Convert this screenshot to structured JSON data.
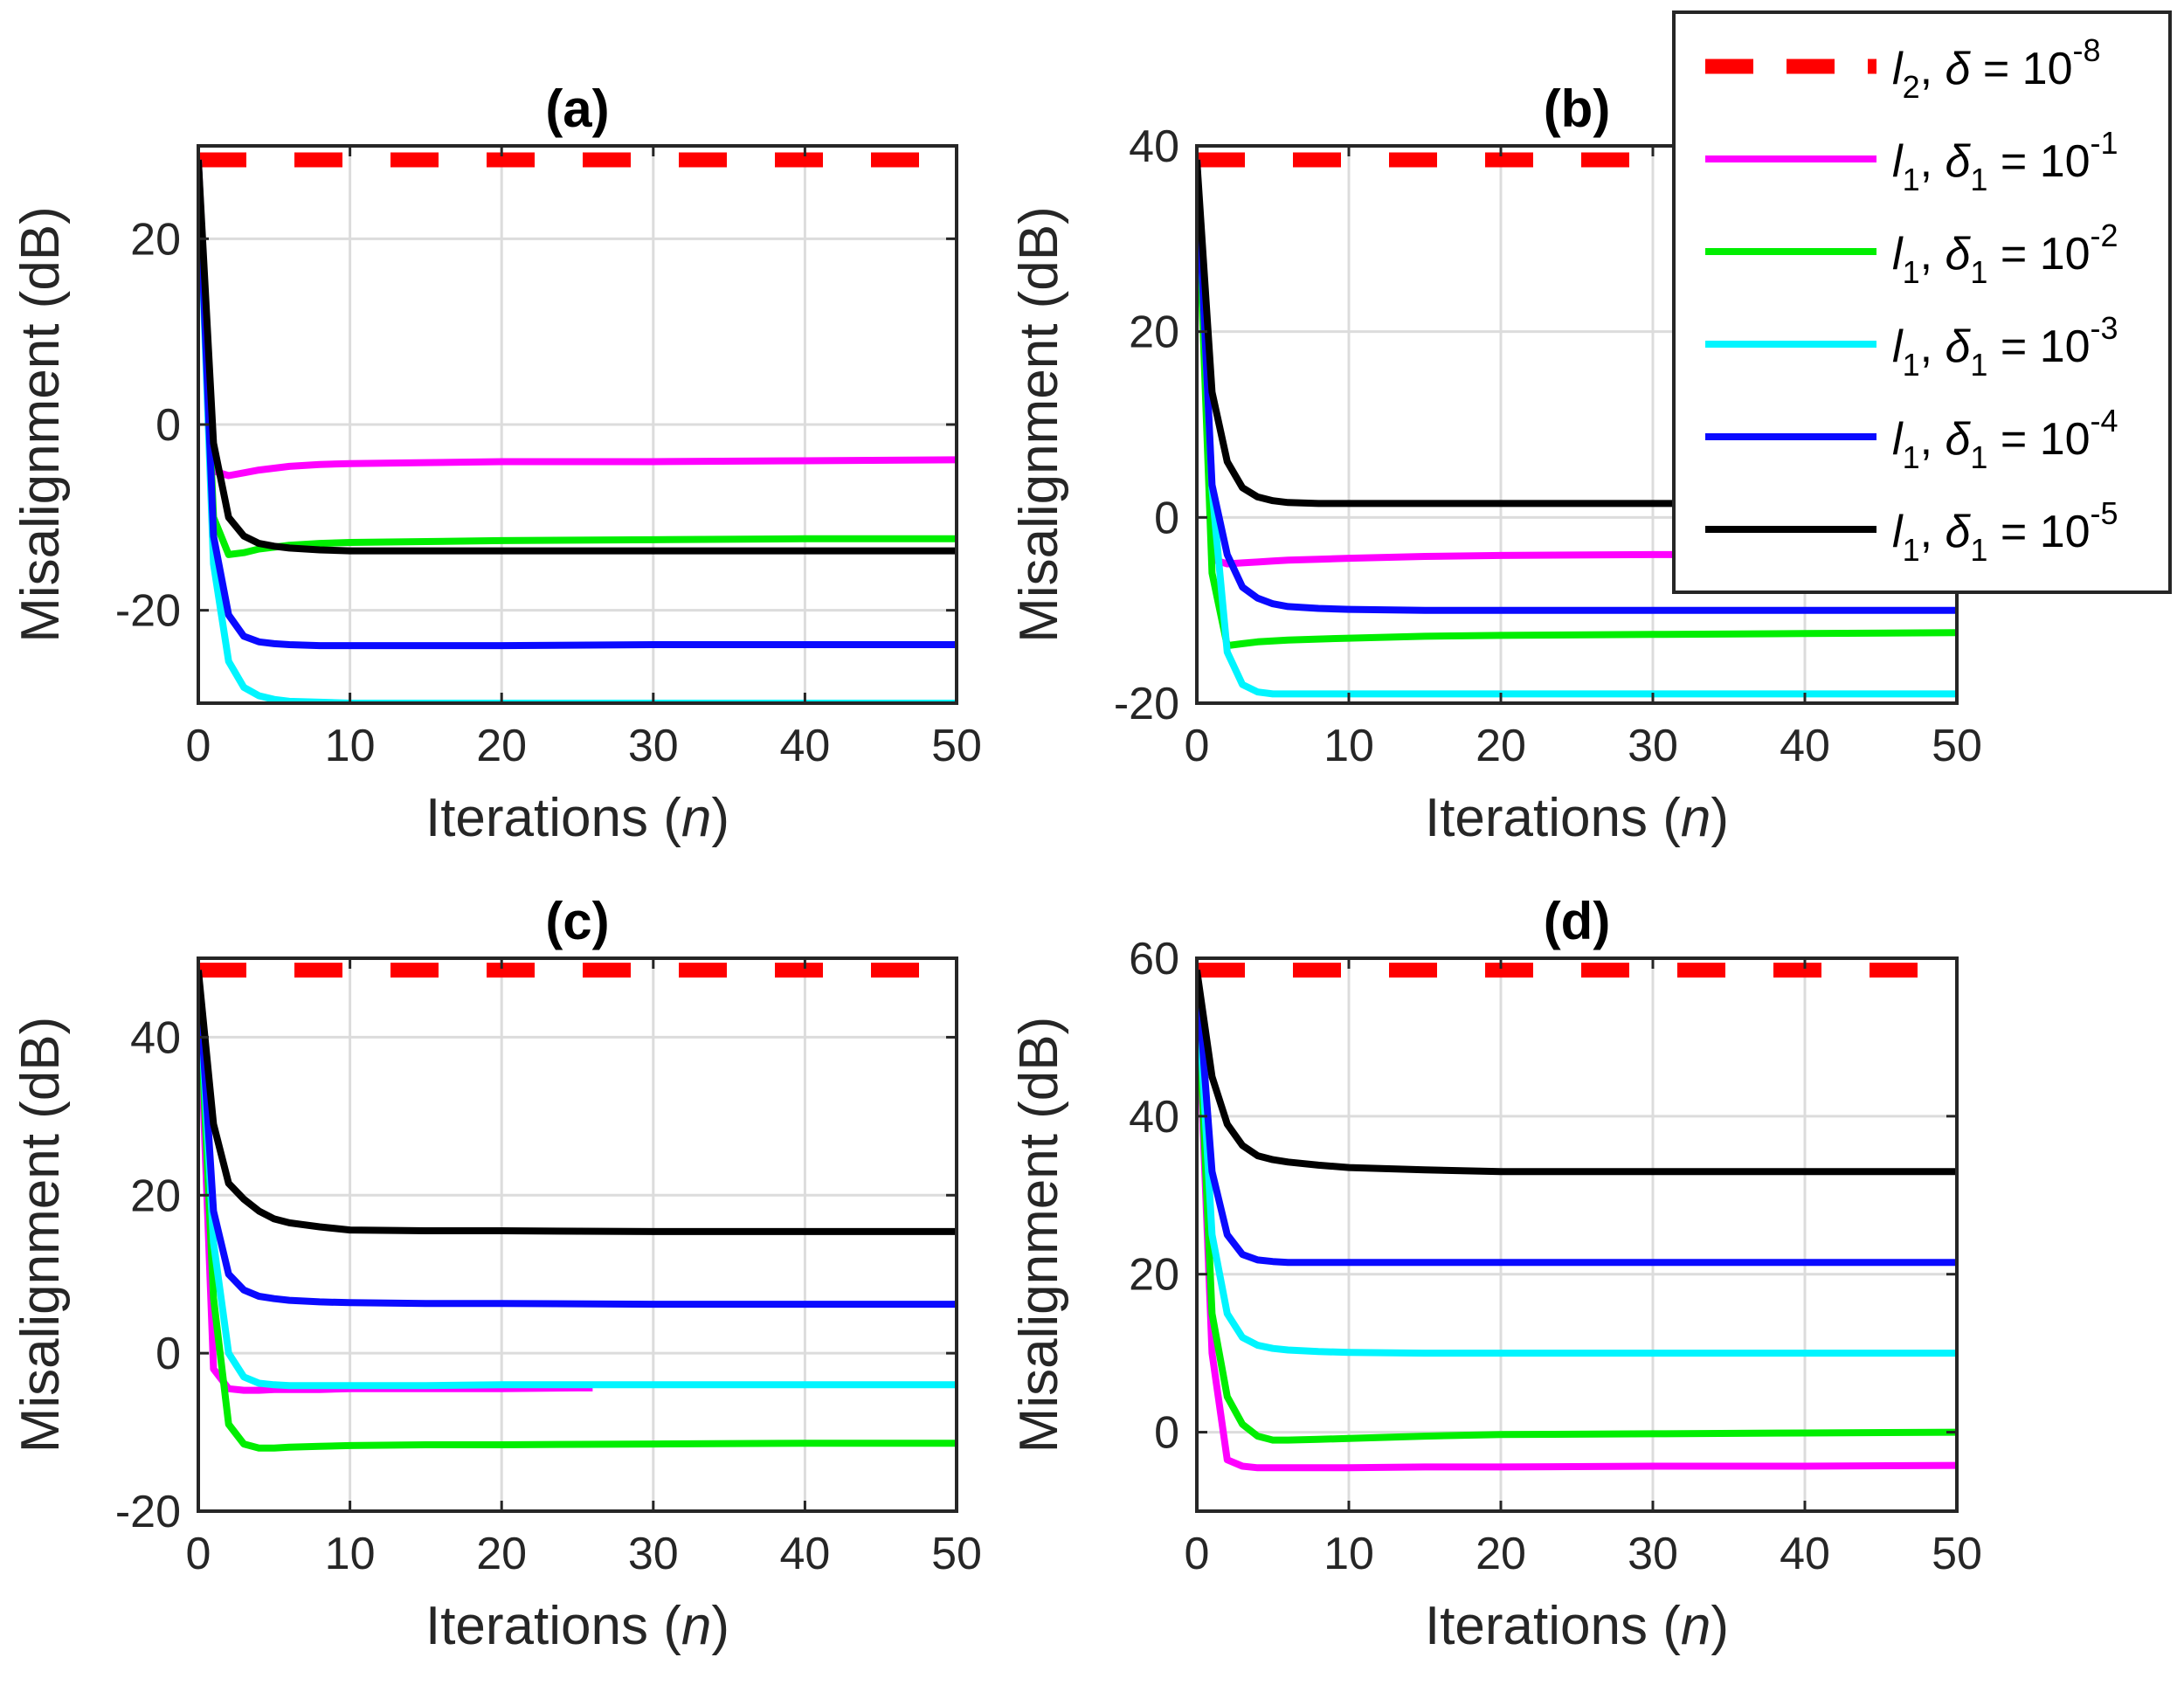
{
  "chart_data": {
    "type": "line",
    "layout": "2x2 subplots",
    "shared": {
      "xlabel_text": "Iterations (",
      "xlabel_var": "n",
      "xlabel_close": ")",
      "ylabel": "Misalignment (dB)",
      "xlim": [
        0,
        50
      ],
      "xticks": [
        0,
        10,
        20,
        30,
        40,
        50
      ],
      "grid": true
    },
    "legend": {
      "placement": "top-right, overlapping panel (b)",
      "entries": [
        {
          "key": "l2",
          "color": "#ff0000",
          "style": "dashed",
          "norm": "l",
          "norm_sub": "2",
          "param": "δ",
          "param_sub": "",
          "eq": " = 10",
          "exp": "-8"
        },
        {
          "key": "l1_1",
          "color": "#ff00ff",
          "style": "solid",
          "norm": "l",
          "norm_sub": "1",
          "param": "δ",
          "param_sub": "1",
          "eq": " = 10",
          "exp": "-1"
        },
        {
          "key": "l1_2",
          "color": "#00ee00",
          "style": "solid",
          "norm": "l",
          "norm_sub": "1",
          "param": "δ",
          "param_sub": "1",
          "eq": " = 10",
          "exp": "-2"
        },
        {
          "key": "l1_3",
          "color": "#00f5ff",
          "style": "solid",
          "norm": "l",
          "norm_sub": "1",
          "param": "δ",
          "param_sub": "1",
          "eq": " = 10",
          "exp": "-3"
        },
        {
          "key": "l1_4",
          "color": "#0a0aff",
          "style": "solid",
          "norm": "l",
          "norm_sub": "1",
          "param": "δ",
          "param_sub": "1",
          "eq": " = 10",
          "exp": "-4"
        },
        {
          "key": "l1_5",
          "color": "#000000",
          "style": "solid",
          "norm": "l",
          "norm_sub": "1",
          "param": "δ",
          "param_sub": "1",
          "eq": " = 10",
          "exp": "-5"
        }
      ]
    },
    "panels": [
      {
        "title": "(a)",
        "ylim": [
          -30,
          30
        ],
        "yticks": [
          -20,
          0,
          20
        ],
        "series": [
          {
            "key": "l2",
            "x": [
              0,
              50
            ],
            "y": [
              28.5,
              28.5
            ]
          },
          {
            "key": "l1_1",
            "x": [
              0,
              1,
              2,
              3,
              4,
              5,
              6,
              8,
              10,
              15,
              20,
              30,
              40,
              50
            ],
            "y": [
              28.5,
              -5,
              -5.5,
              -5.2,
              -4.9,
              -4.7,
              -4.5,
              -4.3,
              -4.2,
              -4.1,
              -4,
              -4,
              -3.9,
              -3.8
            ]
          },
          {
            "key": "l1_2",
            "x": [
              0,
              1,
              2,
              3,
              4,
              5,
              6,
              8,
              10,
              15,
              20,
              30,
              40,
              50
            ],
            "y": [
              28.5,
              -10,
              -14,
              -13.8,
              -13.4,
              -13.2,
              -13,
              -12.8,
              -12.7,
              -12.6,
              -12.5,
              -12.4,
              -12.3,
              -12.3
            ]
          },
          {
            "key": "l1_3",
            "x": [
              0,
              1,
              2,
              3,
              4,
              5,
              6,
              8,
              10,
              15,
              20,
              30,
              40,
              50
            ],
            "y": [
              28.5,
              -15,
              -25.5,
              -28.3,
              -29.2,
              -29.6,
              -29.8,
              -29.9,
              -30,
              -30,
              -30,
              -30,
              -30,
              -30
            ]
          },
          {
            "key": "l1_4",
            "x": [
              0,
              1,
              2,
              3,
              4,
              5,
              6,
              8,
              10,
              15,
              20,
              30,
              40,
              50
            ],
            "y": [
              28.5,
              -12,
              -20.5,
              -22.8,
              -23.4,
              -23.6,
              -23.7,
              -23.8,
              -23.8,
              -23.8,
              -23.8,
              -23.7,
              -23.7,
              -23.7
            ]
          },
          {
            "key": "l1_5",
            "x": [
              0,
              1,
              2,
              3,
              4,
              5,
              6,
              8,
              10,
              15,
              20,
              30,
              40,
              50
            ],
            "y": [
              28.5,
              -2,
              -10,
              -12,
              -12.8,
              -13.1,
              -13.3,
              -13.5,
              -13.6,
              -13.6,
              -13.6,
              -13.6,
              -13.6,
              -13.6
            ]
          }
        ]
      },
      {
        "title": "(b)",
        "ylim": [
          -20,
          40
        ],
        "yticks": [
          -20,
          0,
          20,
          40
        ],
        "series": [
          {
            "key": "l2",
            "x": [
              0,
              50
            ],
            "y": [
              38.5,
              38.5
            ]
          },
          {
            "key": "l1_1",
            "x": [
              0,
              1,
              2,
              3,
              4,
              5,
              6,
              8,
              10,
              15,
              20,
              30,
              40,
              50
            ],
            "y": [
              38.5,
              -4.5,
              -5,
              -4.9,
              -4.8,
              -4.7,
              -4.6,
              -4.5,
              -4.4,
              -4.2,
              -4.1,
              -4,
              -4,
              -4
            ]
          },
          {
            "key": "l1_2",
            "x": [
              0,
              1,
              2,
              3,
              4,
              5,
              6,
              8,
              10,
              15,
              20,
              30,
              40,
              50
            ],
            "y": [
              38.5,
              -6,
              -13.8,
              -13.6,
              -13.4,
              -13.3,
              -13.2,
              -13.1,
              -13,
              -12.8,
              -12.7,
              -12.6,
              -12.5,
              -12.4
            ]
          },
          {
            "key": "l1_3",
            "x": [
              0,
              1,
              2,
              3,
              4,
              5,
              6,
              8,
              10,
              15,
              20,
              30,
              40,
              50
            ],
            "y": [
              38.5,
              3,
              -14.5,
              -18,
              -18.8,
              -19,
              -19,
              -19,
              -19,
              -19,
              -19,
              -19,
              -19,
              -19
            ]
          },
          {
            "key": "l1_4",
            "x": [
              0,
              1,
              2,
              3,
              4,
              5,
              6,
              8,
              10,
              15,
              20,
              30,
              40,
              50
            ],
            "y": [
              38.5,
              3.5,
              -4,
              -7.5,
              -8.7,
              -9.3,
              -9.6,
              -9.8,
              -9.9,
              -10,
              -10,
              -10,
              -10,
              -10
            ]
          },
          {
            "key": "l1_5",
            "x": [
              0,
              1,
              2,
              3,
              4,
              5,
              6,
              8,
              10,
              15,
              20,
              30,
              40,
              50
            ],
            "y": [
              38.5,
              13.5,
              6,
              3.2,
              2.2,
              1.8,
              1.6,
              1.5,
              1.5,
              1.5,
              1.5,
              1.5,
              1.5,
              1.5
            ]
          }
        ]
      },
      {
        "title": "(c)",
        "ylim": [
          -20,
          50
        ],
        "yticks": [
          -20,
          0,
          20,
          40
        ],
        "series": [
          {
            "key": "l2",
            "x": [
              0,
              50
            ],
            "y": [
              48.5,
              48.5
            ]
          },
          {
            "key": "l1_1",
            "x": [
              0,
              1,
              2,
              3,
              4,
              5,
              6,
              8,
              10,
              15,
              20,
              25,
              26
            ],
            "y": [
              48.5,
              -2,
              -4.5,
              -4.7,
              -4.7,
              -4.6,
              -4.6,
              -4.6,
              -4.5,
              -4.5,
              -4.5,
              -4.4,
              -4.4
            ]
          },
          {
            "key": "l1_2",
            "x": [
              0,
              1,
              2,
              3,
              4,
              5,
              6,
              8,
              10,
              15,
              20,
              30,
              40,
              50
            ],
            "y": [
              48.5,
              7,
              -9,
              -11.5,
              -12,
              -12,
              -11.9,
              -11.8,
              -11.7,
              -11.6,
              -11.6,
              -11.5,
              -11.4,
              -11.4
            ]
          },
          {
            "key": "l1_3",
            "x": [
              0,
              1,
              2,
              3,
              4,
              5,
              6,
              8,
              10,
              15,
              20,
              30,
              40,
              50
            ],
            "y": [
              48.5,
              14,
              0,
              -3,
              -3.8,
              -4,
              -4.1,
              -4.1,
              -4.1,
              -4.1,
              -4,
              -4,
              -4,
              -4
            ]
          },
          {
            "key": "l1_4",
            "x": [
              0,
              1,
              2,
              3,
              4,
              5,
              6,
              8,
              10,
              15,
              20,
              30,
              40,
              50
            ],
            "y": [
              48.5,
              18,
              10,
              8,
              7.2,
              6.9,
              6.7,
              6.5,
              6.4,
              6.3,
              6.3,
              6.2,
              6.2,
              6.2
            ]
          },
          {
            "key": "l1_5",
            "x": [
              0,
              1,
              2,
              3,
              4,
              5,
              6,
              8,
              10,
              15,
              20,
              30,
              40,
              50
            ],
            "y": [
              48.5,
              29,
              21.5,
              19.5,
              18,
              17,
              16.5,
              16,
              15.6,
              15.5,
              15.5,
              15.4,
              15.4,
              15.4
            ]
          }
        ]
      },
      {
        "title": "(d)",
        "ylim": [
          -10,
          60
        ],
        "yticks": [
          0,
          20,
          40,
          60
        ],
        "series": [
          {
            "key": "l2",
            "x": [
              0,
              50
            ],
            "y": [
              58.5,
              58.5
            ]
          },
          {
            "key": "l1_1",
            "x": [
              0,
              1,
              2,
              3,
              4,
              5,
              6,
              8,
              10,
              15,
              20,
              30,
              40,
              50
            ],
            "y": [
              58.5,
              10,
              -3.5,
              -4.3,
              -4.5,
              -4.5,
              -4.5,
              -4.5,
              -4.5,
              -4.4,
              -4.4,
              -4.3,
              -4.3,
              -4.2
            ]
          },
          {
            "key": "l1_2",
            "x": [
              0,
              1,
              2,
              3,
              4,
              5,
              6,
              8,
              10,
              15,
              20,
              30,
              40,
              50
            ],
            "y": [
              58.5,
              15,
              4.5,
              1,
              -0.5,
              -1,
              -1,
              -0.9,
              -0.8,
              -0.5,
              -0.3,
              -0.2,
              -0.1,
              0
            ]
          },
          {
            "key": "l1_3",
            "x": [
              0,
              1,
              2,
              3,
              4,
              5,
              6,
              8,
              10,
              15,
              20,
              30,
              40,
              50
            ],
            "y": [
              58.5,
              25,
              15,
              12,
              11,
              10.6,
              10.4,
              10.2,
              10.1,
              10,
              10,
              10,
              10,
              10
            ]
          },
          {
            "key": "l1_4",
            "x": [
              0,
              1,
              2,
              3,
              4,
              5,
              6,
              8,
              10,
              15,
              20,
              30,
              40,
              50
            ],
            "y": [
              58.5,
              33,
              25,
              22.5,
              21.8,
              21.6,
              21.5,
              21.5,
              21.5,
              21.5,
              21.5,
              21.5,
              21.5,
              21.5
            ]
          },
          {
            "key": "l1_5",
            "x": [
              0,
              1,
              2,
              3,
              4,
              5,
              6,
              8,
              10,
              15,
              20,
              30,
              40,
              50
            ],
            "y": [
              58.5,
              45,
              39,
              36.3,
              35,
              34.5,
              34.2,
              33.8,
              33.5,
              33.2,
              33,
              33,
              33,
              33
            ]
          }
        ]
      }
    ]
  }
}
